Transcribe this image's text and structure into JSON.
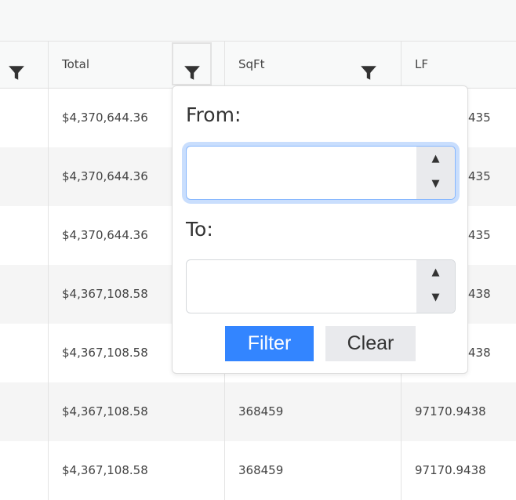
{
  "columns": [
    {
      "label": ""
    },
    {
      "label": "Total"
    },
    {
      "label": "SqFt"
    },
    {
      "label": "LF"
    }
  ],
  "rows": [
    {
      "total": "$4,370,644.36",
      "sqft": "",
      "lf": "435"
    },
    {
      "total": "$4,370,644.36",
      "sqft": "",
      "lf": "435"
    },
    {
      "total": "$4,370,644.36",
      "sqft": "",
      "lf": "435"
    },
    {
      "total": "$4,367,108.58",
      "sqft": "",
      "lf": "438"
    },
    {
      "total": "$4,367,108.58",
      "sqft": "",
      "lf": "438"
    },
    {
      "total": "$4,367,108.58",
      "sqft": "368459",
      "lf": "97170.9438"
    },
    {
      "total": "$4,367,108.58",
      "sqft": "368459",
      "lf": "97170.9438"
    }
  ],
  "filter_popup": {
    "from_label": "From:",
    "from_value": "",
    "to_label": "To:",
    "to_value": "",
    "filter_label": "Filter",
    "clear_label": "Clear",
    "spin_up": "▲",
    "spin_down": "▼"
  },
  "colors": {
    "accent": "#3385ff",
    "clear_bg": "#e9eaed",
    "focus_ring": "#c9defd"
  }
}
